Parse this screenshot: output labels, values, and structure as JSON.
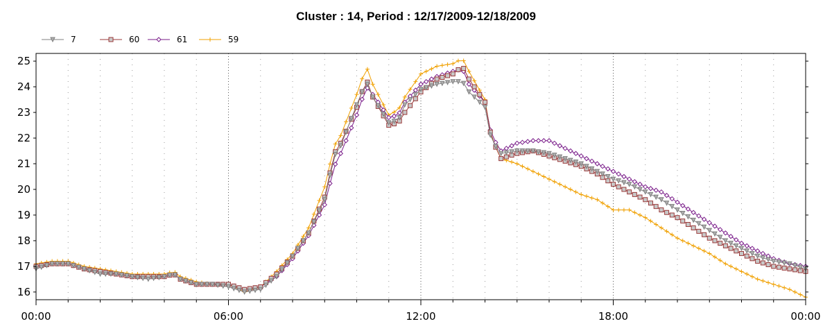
{
  "chart_data": {
    "type": "line",
    "title": "Cluster : 14, Period : 12/17/2009-12/18/2009",
    "xlabel": "",
    "ylabel": "",
    "x_tick_labels": [
      "00:00",
      "06:00",
      "12:00",
      "18:00",
      "00:00"
    ],
    "x_ticks_hours": [
      0,
      6,
      12,
      18,
      24
    ],
    "xlim_hours": [
      0,
      24
    ],
    "ylim": [
      15.7,
      25.3
    ],
    "y_ticks": [
      16,
      17,
      18,
      19,
      20,
      21,
      22,
      23,
      24,
      25
    ],
    "grid": "dotted vertical lines every hour",
    "legend_position": "top-left",
    "x_hours": [
      0,
      0.5,
      1,
      1.5,
      2,
      2.5,
      3,
      3.5,
      4,
      4.3,
      4.5,
      5,
      5.5,
      6,
      6.5,
      7,
      7.5,
      8,
      8.5,
      9,
      9.3,
      9.5,
      10,
      10.3,
      10.5,
      11,
      11.3,
      11.5,
      12,
      12.5,
      13,
      13.3,
      13.5,
      14,
      14.2,
      14.5,
      15,
      15.5,
      16,
      16.5,
      17,
      17.5,
      18,
      18.5,
      19,
      19.5,
      20,
      20.5,
      21,
      21.5,
      22,
      22.5,
      23,
      23.5,
      24
    ],
    "series": [
      {
        "name": "7",
        "color": "#808080",
        "marker": "triangle-down",
        "values": [
          16.9,
          17.1,
          17.1,
          16.9,
          16.7,
          16.7,
          16.6,
          16.5,
          16.6,
          16.7,
          16.5,
          16.3,
          16.3,
          16.2,
          16.0,
          16.1,
          16.6,
          17.4,
          18.3,
          19.6,
          21.3,
          21.7,
          23.3,
          24.2,
          23.6,
          22.6,
          22.7,
          23.3,
          23.9,
          24.1,
          24.2,
          24.2,
          23.8,
          23.2,
          21.9,
          21.4,
          21.5,
          21.5,
          21.4,
          21.2,
          21.0,
          20.7,
          20.4,
          20.2,
          19.9,
          19.6,
          19.2,
          18.8,
          18.4,
          18.0,
          17.7,
          17.4,
          17.2,
          17.1,
          16.9
        ]
      },
      {
        "name": "60",
        "color": "#9b3a3a",
        "marker": "square",
        "values": [
          17.0,
          17.1,
          17.1,
          16.9,
          16.8,
          16.7,
          16.6,
          16.6,
          16.6,
          16.7,
          16.5,
          16.3,
          16.3,
          16.3,
          16.1,
          16.2,
          16.7,
          17.4,
          18.3,
          19.7,
          21.4,
          21.8,
          23.2,
          24.3,
          23.6,
          22.5,
          22.6,
          23.0,
          23.8,
          24.3,
          24.5,
          24.8,
          24.3,
          23.4,
          22.0,
          21.2,
          21.4,
          21.5,
          21.3,
          21.1,
          20.9,
          20.6,
          20.2,
          19.9,
          19.6,
          19.2,
          18.9,
          18.5,
          18.1,
          17.8,
          17.5,
          17.2,
          17.0,
          16.9,
          16.8
        ]
      },
      {
        "name": "61",
        "color": "#7a1d8a",
        "marker": "diamond",
        "values": [
          17.0,
          17.1,
          17.1,
          16.9,
          16.8,
          16.7,
          16.6,
          16.6,
          16.6,
          16.7,
          16.5,
          16.3,
          16.3,
          16.3,
          16.1,
          16.2,
          16.6,
          17.3,
          18.2,
          19.4,
          20.9,
          21.4,
          22.9,
          24.0,
          23.7,
          22.8,
          22.9,
          23.4,
          24.1,
          24.4,
          24.6,
          24.7,
          24.1,
          23.4,
          22.1,
          21.5,
          21.8,
          21.9,
          21.9,
          21.6,
          21.3,
          21.0,
          20.7,
          20.4,
          20.1,
          19.9,
          19.5,
          19.1,
          18.7,
          18.3,
          17.9,
          17.6,
          17.3,
          17.1,
          17.0
        ]
      },
      {
        "name": "59",
        "color": "#f0a000",
        "marker": "plus",
        "values": [
          17.1,
          17.2,
          17.2,
          17.0,
          16.9,
          16.8,
          16.7,
          16.7,
          16.7,
          16.8,
          16.6,
          16.4,
          16.3,
          16.3,
          16.0,
          16.2,
          16.8,
          17.5,
          18.5,
          20.1,
          21.7,
          22.1,
          23.7,
          24.8,
          24.1,
          22.9,
          23.1,
          23.6,
          24.5,
          24.8,
          24.9,
          25.1,
          24.6,
          23.5,
          22.0,
          21.2,
          21.0,
          20.7,
          20.4,
          20.1,
          19.8,
          19.6,
          19.2,
          19.2,
          18.9,
          18.5,
          18.1,
          17.8,
          17.5,
          17.1,
          16.8,
          16.5,
          16.3,
          16.1,
          15.8
        ]
      }
    ]
  }
}
